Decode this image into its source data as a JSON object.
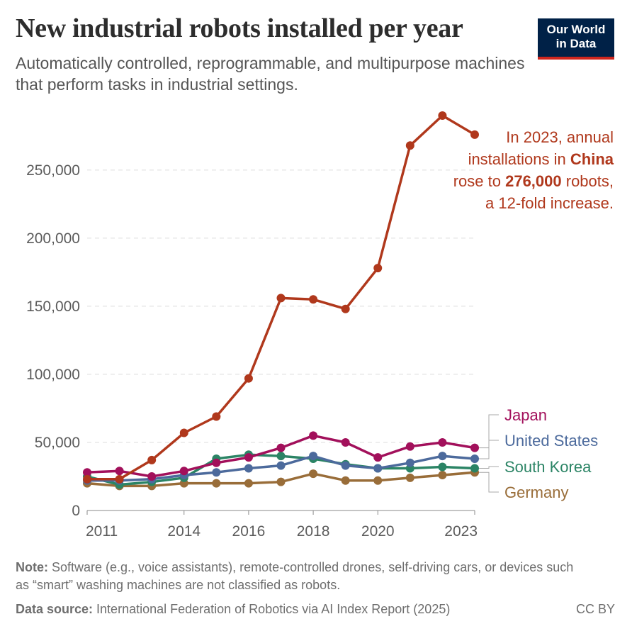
{
  "header": {
    "title": "New industrial robots installed per year",
    "subtitle": "Automatically controlled, reprogrammable, and multipurpose machines that perform tasks in industrial settings.",
    "logo_line1": "Our World",
    "logo_line2": "in Data"
  },
  "footer": {
    "note_label": "Note:",
    "note_text": " Software (e.g., voice assistants), remote-controlled drones, self-driving cars, or devices such as “smart” washing machines are not classified as robots.",
    "source_label": "Data source:",
    "source_text": " International Federation of Robotics via AI Index Report (2025)",
    "license": "CC BY"
  },
  "annotation": {
    "line1": "In 2023, annual",
    "line2_pre": "installations in ",
    "line2_bold": "China",
    "line3_pre": "rose to ",
    "line3_bold": "276,000",
    "line3_post": " robots,",
    "line4": "a 12-fold increase."
  },
  "chart_data": {
    "type": "line",
    "title": "New industrial robots installed per year",
    "x": [
      2011,
      2012,
      2013,
      2014,
      2015,
      2016,
      2017,
      2018,
      2019,
      2020,
      2021,
      2022,
      2023
    ],
    "x_tick_labels": [
      "2011",
      "2014",
      "2016",
      "2018",
      "2020",
      "2023"
    ],
    "x_tick_values": [
      2011,
      2014,
      2016,
      2018,
      2020,
      2023
    ],
    "y_ticks": [
      0,
      50000,
      100000,
      150000,
      200000,
      250000
    ],
    "y_tick_labels": [
      "0",
      "50,000",
      "100,000",
      "150,000",
      "200,000",
      "250,000"
    ],
    "ylim": [
      0,
      290000
    ],
    "grid": true,
    "legend_position": "right",
    "series": [
      {
        "name": "China",
        "color": "#b0381c",
        "label": "",
        "values": [
          23000,
          23000,
          37000,
          57000,
          69000,
          97000,
          156000,
          155000,
          148000,
          178000,
          268000,
          290000,
          276000
        ]
      },
      {
        "name": "Japan",
        "color": "#a2105b",
        "label": "Japan",
        "values": [
          28000,
          29000,
          25000,
          29000,
          35000,
          39000,
          46000,
          55000,
          50000,
          39000,
          47000,
          50000,
          46000
        ]
      },
      {
        "name": "United States",
        "color": "#4c6a9c",
        "label": "United States",
        "values": [
          22000,
          22000,
          23000,
          26000,
          28000,
          31000,
          33000,
          40000,
          33000,
          31000,
          35000,
          40000,
          38000
        ]
      },
      {
        "name": "South Korea",
        "color": "#2b8465",
        "label": "South Korea",
        "values": [
          25000,
          19000,
          21000,
          24000,
          38000,
          41000,
          40000,
          38000,
          34000,
          31000,
          31000,
          32000,
          31000
        ]
      },
      {
        "name": "Germany",
        "color": "#996d39",
        "label": "Germany",
        "values": [
          20000,
          18000,
          18000,
          20000,
          20000,
          20000,
          21000,
          27000,
          22000,
          22000,
          24000,
          26000,
          28000
        ]
      }
    ]
  }
}
